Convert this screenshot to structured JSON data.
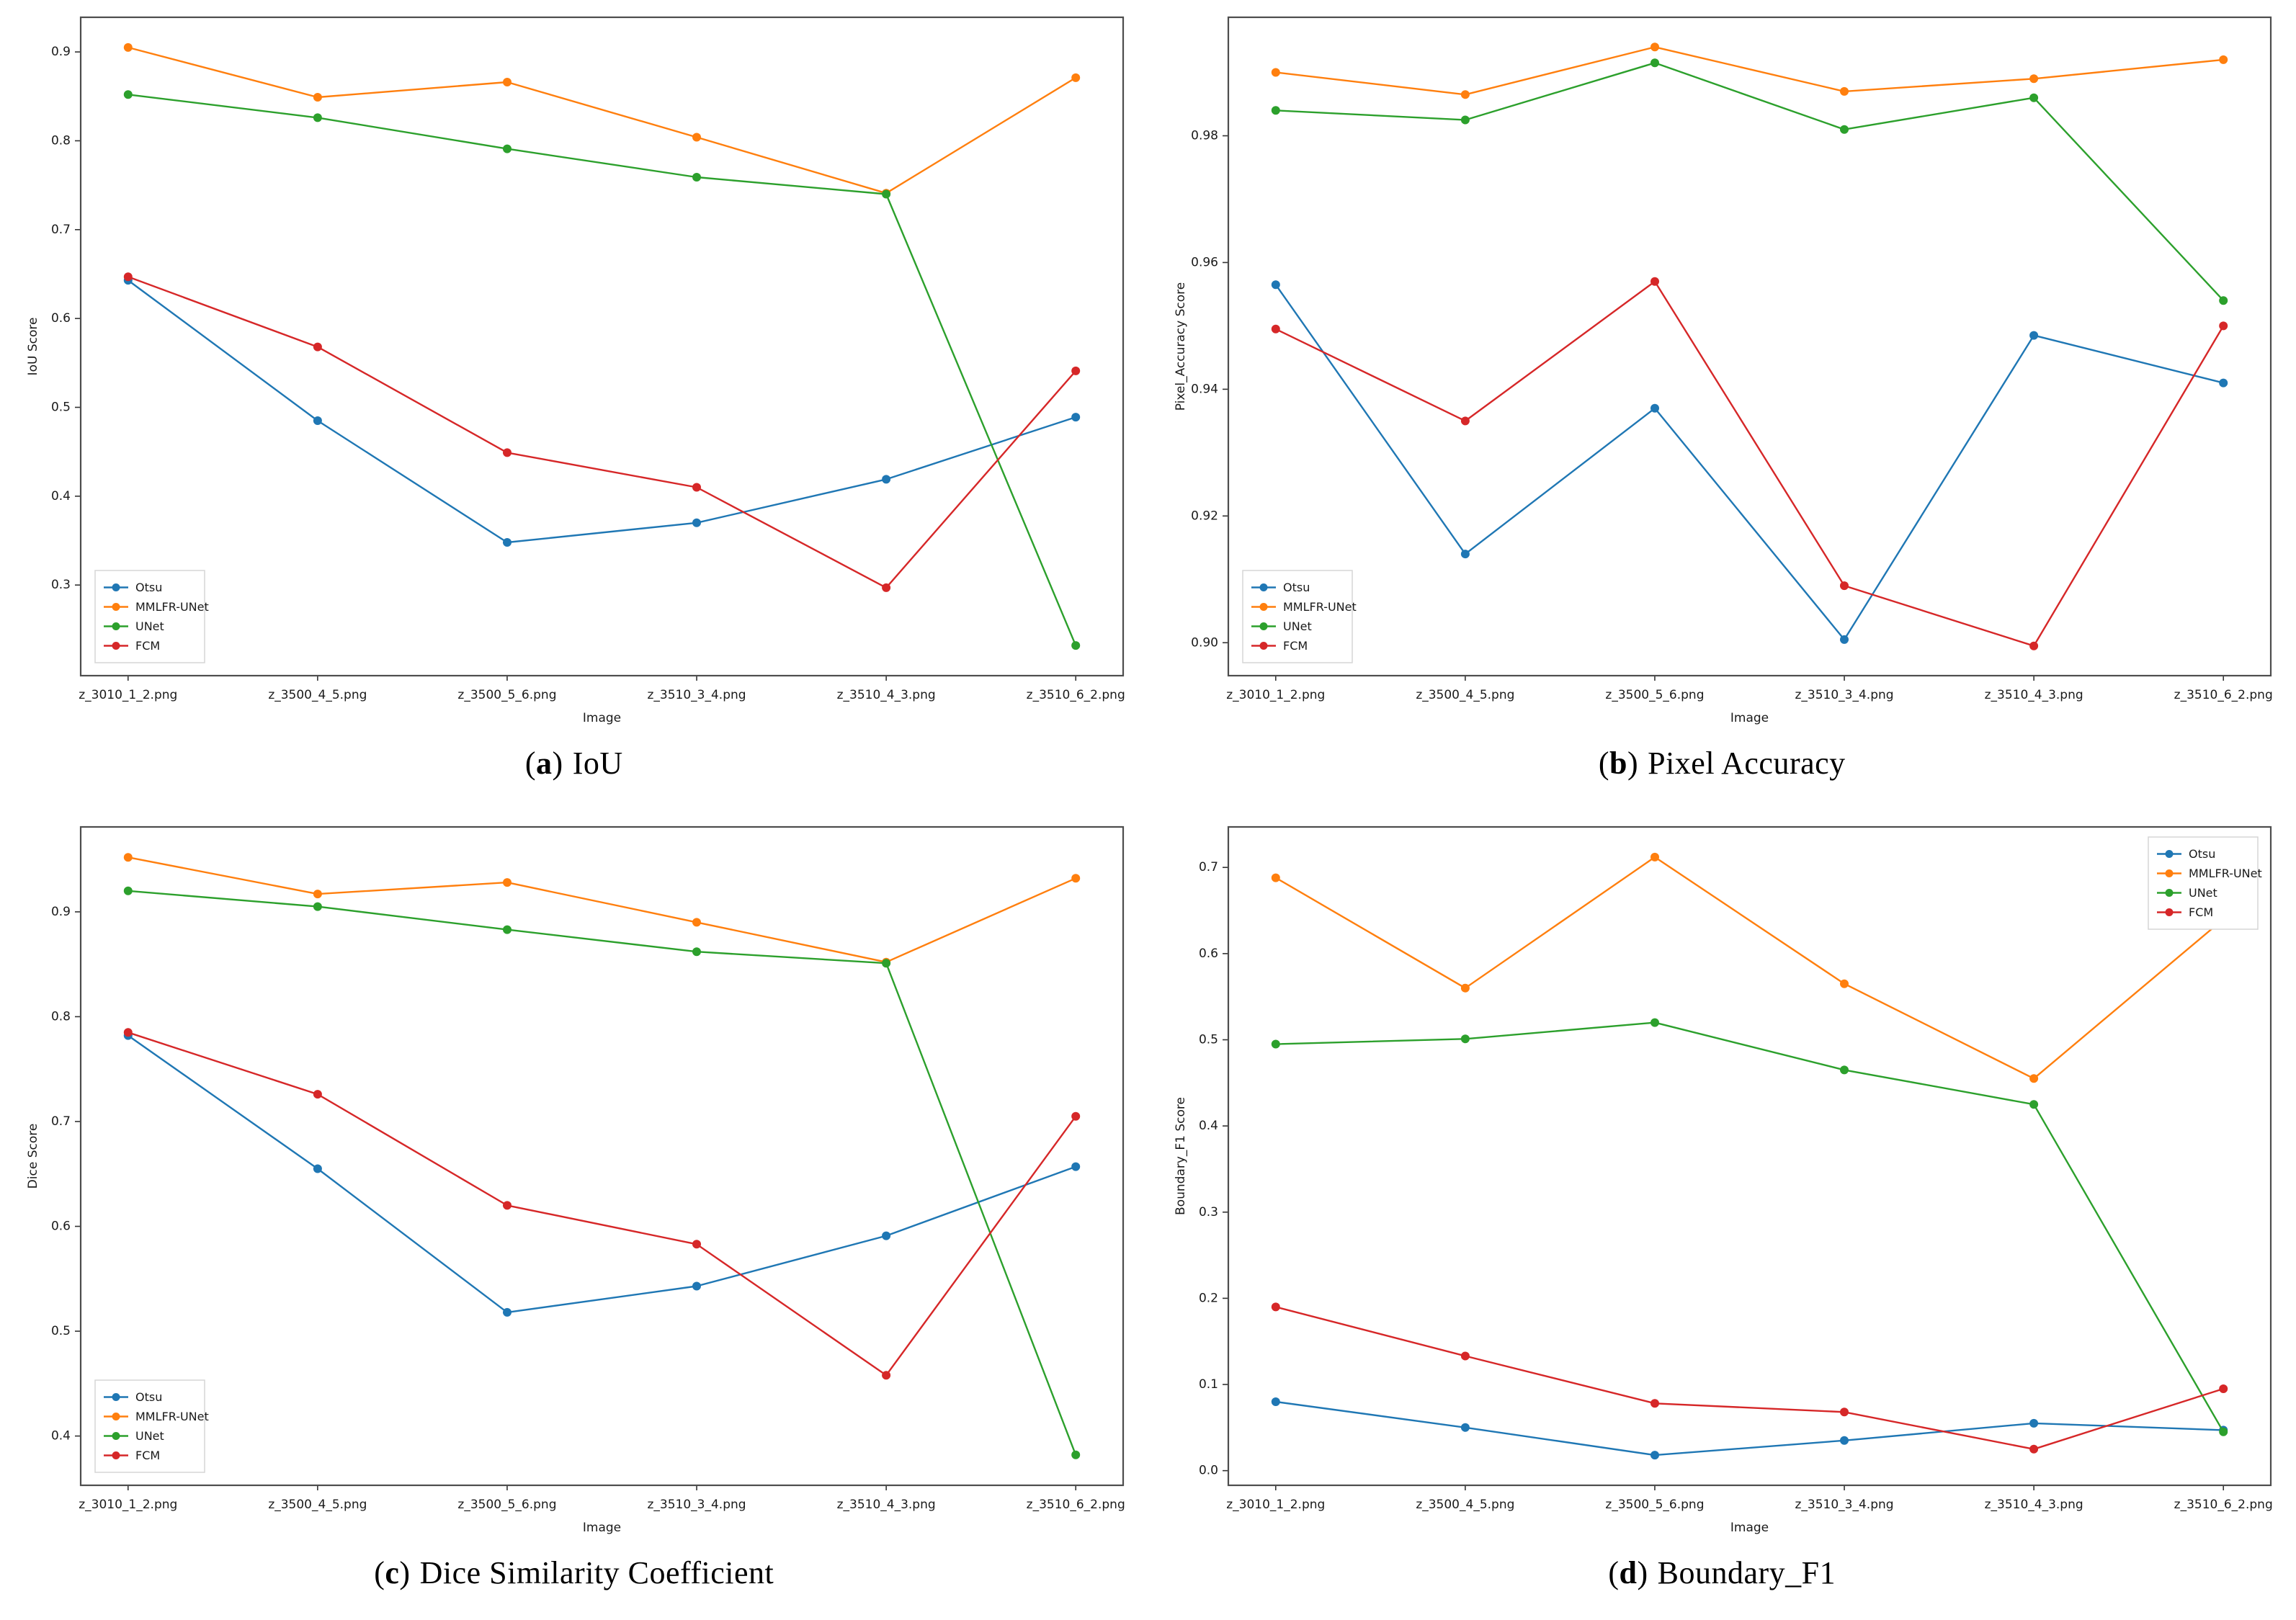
{
  "page": {
    "background": "#ffffff"
  },
  "series_colors": {
    "Otsu": "#1f77b4",
    "MMLFR-UNet": "#ff7f0e",
    "UNet": "#2ca02c",
    "FCM": "#d62728"
  },
  "chart_data": [
    {
      "type": "line",
      "caption": {
        "open": "(",
        "letter": "a",
        "close": ")",
        "title": "IoU"
      },
      "xlabel": "Image",
      "ylabel": "IoU Score",
      "categories": [
        "z_3010_1_2.png",
        "z_3500_4_5.png",
        "z_3500_5_6.png",
        "z_3510_3_4.png",
        "z_3510_4_3.png",
        "z_3510_6_2.png"
      ],
      "ylim": [
        0.198,
        0.939
      ],
      "yticks": [
        0.3,
        0.4,
        0.5,
        0.6,
        0.7,
        0.8,
        0.9
      ],
      "ytick_labels": [
        "0.3",
        "0.4",
        "0.5",
        "0.6",
        "0.7",
        "0.8",
        "0.9"
      ],
      "legend_position": "lower-left",
      "grid": false,
      "series": [
        {
          "name": "Otsu",
          "color": "#1f77b4",
          "values": [
            0.643,
            0.485,
            0.348,
            0.37,
            0.419,
            0.489
          ]
        },
        {
          "name": "MMLFR-UNet",
          "color": "#ff7f0e",
          "values": [
            0.905,
            0.849,
            0.866,
            0.804,
            0.741,
            0.871
          ]
        },
        {
          "name": "UNet",
          "color": "#2ca02c",
          "values": [
            0.852,
            0.826,
            0.791,
            0.759,
            0.74,
            0.232
          ]
        },
        {
          "name": "FCM",
          "color": "#d62728",
          "values": [
            0.647,
            0.568,
            0.449,
            0.41,
            0.297,
            0.541
          ]
        }
      ]
    },
    {
      "type": "line",
      "caption": {
        "open": "(",
        "letter": "b",
        "close": ")",
        "title": "Pixel Accuracy"
      },
      "xlabel": "Image",
      "ylabel": "Pixel_Accuracy Score",
      "categories": [
        "z_3010_1_2.png",
        "z_3500_4_5.png",
        "z_3500_5_6.png",
        "z_3510_3_4.png",
        "z_3510_4_3.png",
        "z_3510_6_2.png"
      ],
      "ylim": [
        0.8948,
        0.9987
      ],
      "yticks": [
        0.9,
        0.92,
        0.94,
        0.96,
        0.98
      ],
      "ytick_labels": [
        "0.90",
        "0.92",
        "0.94",
        "0.96",
        "0.98"
      ],
      "legend_position": "lower-left",
      "grid": false,
      "series": [
        {
          "name": "Otsu",
          "color": "#1f77b4",
          "values": [
            0.9565,
            0.914,
            0.937,
            0.9005,
            0.9485,
            0.941
          ]
        },
        {
          "name": "MMLFR-UNet",
          "color": "#ff7f0e",
          "values": [
            0.99,
            0.9865,
            0.994,
            0.987,
            0.989,
            0.992
          ]
        },
        {
          "name": "UNet",
          "color": "#2ca02c",
          "values": [
            0.984,
            0.9825,
            0.9915,
            0.981,
            0.986,
            0.954
          ]
        },
        {
          "name": "FCM",
          "color": "#d62728",
          "values": [
            0.9495,
            0.935,
            0.957,
            0.909,
            0.8995,
            0.95
          ]
        }
      ]
    },
    {
      "type": "line",
      "caption": {
        "open": "(",
        "letter": "c",
        "close": ")",
        "title": "Dice Similarity Coefficient"
      },
      "xlabel": "Image",
      "ylabel": "Dice Score",
      "categories": [
        "z_3010_1_2.png",
        "z_3500_4_5.png",
        "z_3500_5_6.png",
        "z_3510_3_4.png",
        "z_3510_4_3.png",
        "z_3510_6_2.png"
      ],
      "ylim": [
        0.353,
        0.981
      ],
      "yticks": [
        0.4,
        0.5,
        0.6,
        0.7,
        0.8,
        0.9
      ],
      "ytick_labels": [
        "0.4",
        "0.5",
        "0.6",
        "0.7",
        "0.8",
        "0.9"
      ],
      "legend_position": "lower-left",
      "grid": false,
      "series": [
        {
          "name": "Otsu",
          "color": "#1f77b4",
          "values": [
            0.782,
            0.655,
            0.518,
            0.543,
            0.591,
            0.657
          ]
        },
        {
          "name": "MMLFR-UNet",
          "color": "#ff7f0e",
          "values": [
            0.952,
            0.917,
            0.928,
            0.89,
            0.852,
            0.932
          ]
        },
        {
          "name": "UNet",
          "color": "#2ca02c",
          "values": [
            0.92,
            0.905,
            0.883,
            0.862,
            0.851,
            0.382
          ]
        },
        {
          "name": "FCM",
          "color": "#d62728",
          "values": [
            0.785,
            0.726,
            0.62,
            0.583,
            0.458,
            0.705
          ]
        }
      ]
    },
    {
      "type": "line",
      "caption": {
        "open": "(",
        "letter": "d",
        "close": ")",
        "title": "Boundary_F1"
      },
      "xlabel": "Image",
      "ylabel": "Boundary_F1 Score",
      "categories": [
        "z_3010_1_2.png",
        "z_3500_4_5.png",
        "z_3500_5_6.png",
        "z_3510_3_4.png",
        "z_3510_4_3.png",
        "z_3510_6_2.png"
      ],
      "ylim": [
        -0.017,
        0.747
      ],
      "yticks": [
        0.0,
        0.1,
        0.2,
        0.3,
        0.4,
        0.5,
        0.6,
        0.7
      ],
      "ytick_labels": [
        "0.0",
        "0.1",
        "0.2",
        "0.3",
        "0.4",
        "0.5",
        "0.6",
        "0.7"
      ],
      "legend_position": "upper-right",
      "grid": false,
      "series": [
        {
          "name": "Otsu",
          "color": "#1f77b4",
          "values": [
            0.08,
            0.05,
            0.018,
            0.035,
            0.055,
            0.047
          ]
        },
        {
          "name": "MMLFR-UNet",
          "color": "#ff7f0e",
          "values": [
            0.688,
            0.56,
            0.712,
            0.565,
            0.455,
            0.64
          ]
        },
        {
          "name": "UNet",
          "color": "#2ca02c",
          "values": [
            0.495,
            0.501,
            0.52,
            0.465,
            0.425,
            0.045
          ]
        },
        {
          "name": "FCM",
          "color": "#d62728",
          "values": [
            0.19,
            0.133,
            0.078,
            0.068,
            0.025,
            0.095
          ]
        }
      ]
    }
  ]
}
